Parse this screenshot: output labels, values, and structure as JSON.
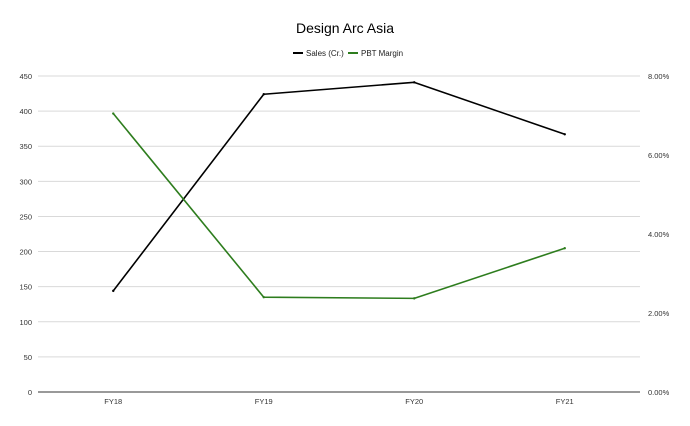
{
  "chart_data": {
    "type": "line",
    "title": "Design Arc Asia",
    "categories": [
      "FY18",
      "FY19",
      "FY20",
      "FY21"
    ],
    "series": [
      {
        "name": "Sales (Cr.)",
        "axis": "left",
        "color": "#000000",
        "values": [
          144,
          424,
          441,
          367
        ]
      },
      {
        "name": "PBT Margin",
        "axis": "right",
        "color": "#2e7d1e",
        "values": [
          0.0705,
          0.024,
          0.0237,
          0.0364
        ]
      }
    ],
    "y_left": {
      "range": [
        0,
        450
      ],
      "ticks": [
        "0",
        "50",
        "100",
        "150",
        "200",
        "250",
        "300",
        "350",
        "400",
        "450"
      ]
    },
    "y_right": {
      "range": [
        0,
        0.08
      ],
      "ticks": [
        "0.00%",
        "2.00%",
        "4.00%",
        "6.00%",
        "8.00%"
      ]
    },
    "grid": true,
    "legend_position": "top"
  }
}
